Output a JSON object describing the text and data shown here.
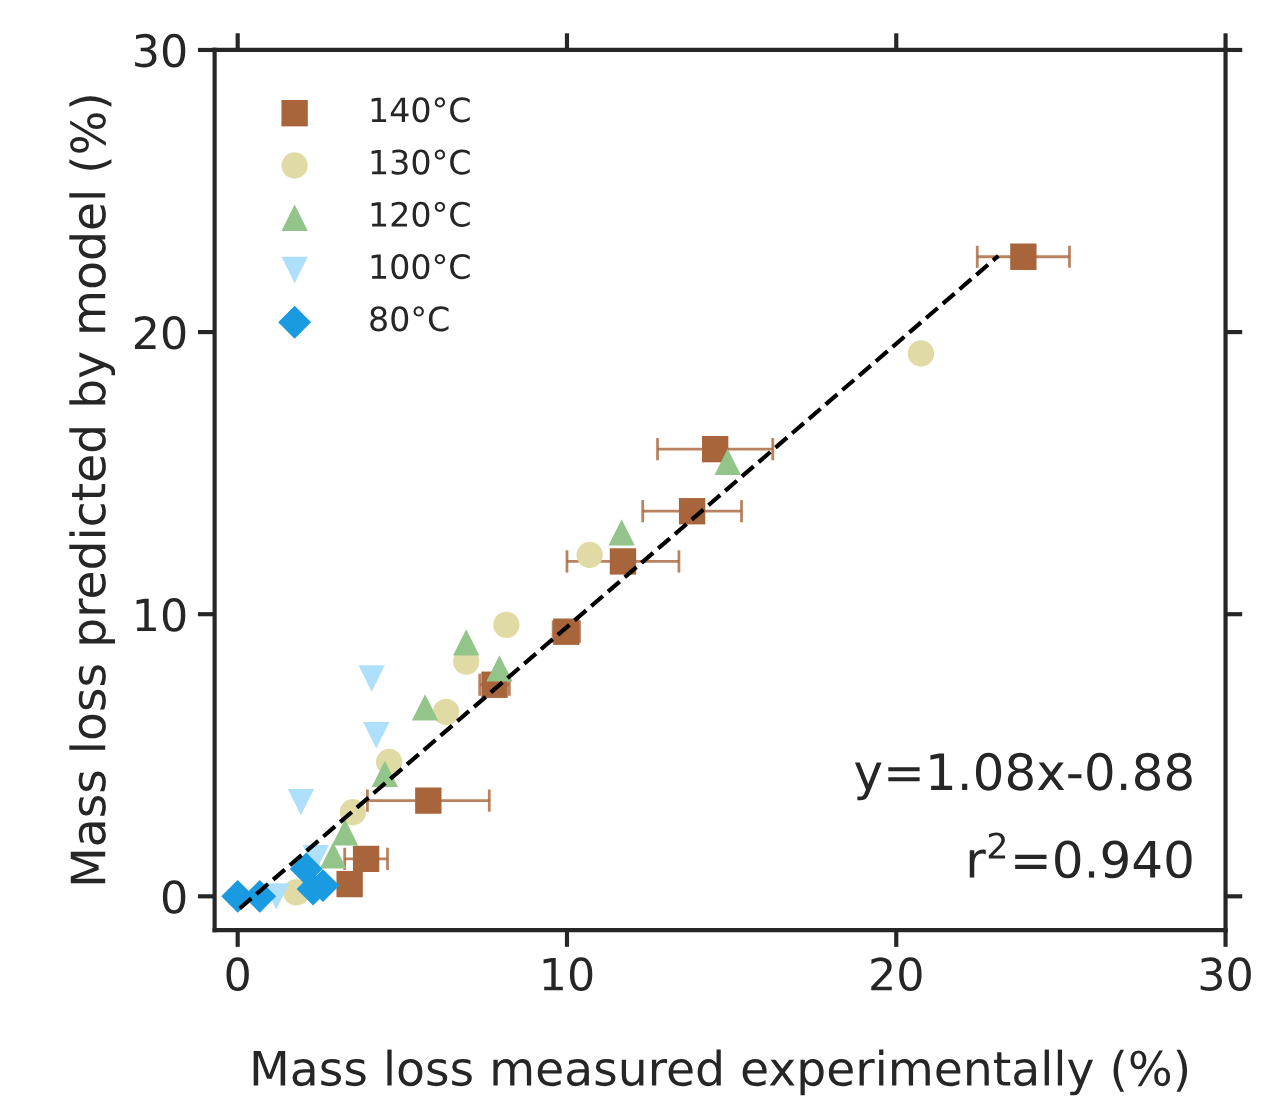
{
  "chart_data": {
    "type": "scatter",
    "xlabel": "Mass loss measured experimentally (%)",
    "ylabel": "Mass loss predicted by model (%)",
    "xlim": [
      -0.7,
      30
    ],
    "ylim": [
      -1.2,
      30
    ],
    "xticks": [
      0,
      10,
      20,
      30
    ],
    "yticks": [
      0,
      10,
      20,
      30
    ],
    "grid": false,
    "legend": "top left",
    "series": [
      {
        "name": "140°C",
        "color": "#a8643a",
        "marker": "square",
        "x": [
          23.86,
          14.5,
          13.8,
          11.7,
          9.98,
          7.8,
          5.79,
          3.9,
          3.4
        ],
        "values": [
          22.67,
          15.85,
          13.65,
          11.87,
          9.38,
          7.5,
          3.39,
          1.33,
          0.43
        ],
        "xerrors": [
          1.4,
          1.75,
          1.5,
          1.7,
          0.4,
          0.45,
          1.85,
          0.65,
          null
        ]
      },
      {
        "name": "130°C",
        "color": "#e0dba5",
        "marker": "circle",
        "x": [
          20.75,
          10.69,
          8.16,
          6.94,
          6.33,
          4.6,
          3.5,
          1.78
        ],
        "values": [
          19.24,
          12.1,
          9.62,
          8.32,
          6.54,
          4.76,
          2.98,
          0.14
        ]
      },
      {
        "name": "120°C",
        "color": "#93c58b",
        "marker": "triangle",
        "x": [
          14.88,
          11.66,
          6.94,
          7.95,
          5.69,
          4.47,
          3.26,
          2.9
        ],
        "values": [
          15.4,
          12.9,
          9.0,
          8.08,
          6.7,
          4.34,
          2.27,
          1.45
        ]
      },
      {
        "name": "100°C",
        "color": "#aee0fb",
        "marker": "triangle_down",
        "x": [
          4.07,
          4.21,
          1.92,
          1.17,
          2.37
        ],
        "values": [
          7.72,
          5.71,
          3.34,
          0.0,
          1.35
        ]
      },
      {
        "name": "80°C",
        "color": "#1a9ae0",
        "marker": "diamond",
        "x": [
          0.0,
          0.67,
          2.08,
          2.29,
          2.59
        ],
        "values": [
          0.0,
          0.0,
          0.97,
          0.26,
          0.38
        ]
      },
      {
        "type": "line",
        "color": "#000000",
        "line_style": "dashed",
        "marker": "none",
        "x": [
          0.06,
          23.1
        ],
        "values": [
          -0.43,
          22.7
        ]
      }
    ],
    "annotations": [
      "y=1.08x-0.88",
      "r$^{2}$=0.940"
    ]
  }
}
